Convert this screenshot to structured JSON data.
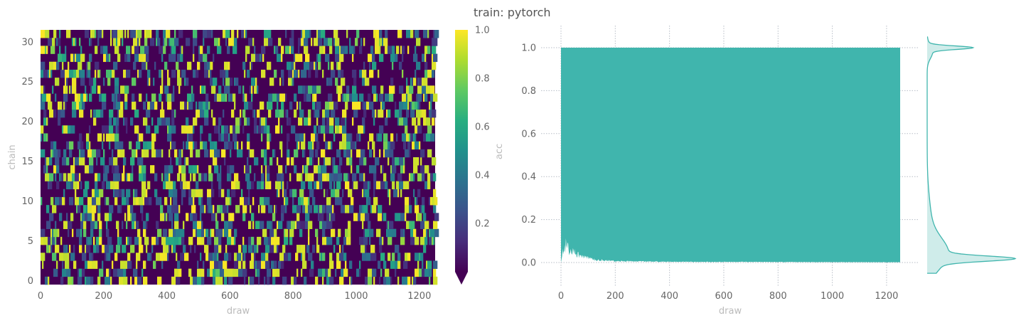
{
  "title": "train: pytorch",
  "colors": {
    "trace": "#40b5ad",
    "grid": "#b7bdc6",
    "viridis_low": "#440154",
    "viridis_high": "#fde725"
  },
  "chart_data": [
    {
      "type": "heatmap",
      "xlabel": "draw",
      "ylabel": "chain",
      "xlim": [
        0,
        1250
      ],
      "ylim": [
        0,
        31
      ],
      "xticks": [
        0,
        200,
        400,
        600,
        800,
        1000,
        1200
      ],
      "yticks": [
        0,
        5,
        10,
        15,
        20,
        25,
        30
      ],
      "n_chains": 32,
      "n_draws": 1250,
      "colormap": "viridis",
      "colorbar": {
        "label": "acc",
        "range": [
          0.0,
          1.0
        ],
        "ticks": [
          0.2,
          0.4,
          0.6,
          0.8,
          1.0
        ],
        "extend": "min"
      }
    },
    {
      "type": "area",
      "xlabel": "draw",
      "ylabel": "",
      "xlim": [
        0,
        1250
      ],
      "ylim": [
        -0.1,
        1.1
      ],
      "xticks": [
        0,
        200,
        400,
        600,
        800,
        1000,
        1200
      ],
      "yticks": [
        0.0,
        0.2,
        0.4,
        0.6,
        0.8,
        1.0
      ],
      "grid": true,
      "series": [
        {
          "upper": 1.0,
          "lower_profile": [
            [
              0,
              0.0
            ],
            [
              5,
              0.08
            ],
            [
              15,
              0.12
            ],
            [
              30,
              0.09
            ],
            [
              50,
              0.07
            ],
            [
              80,
              0.04
            ],
            [
              120,
              0.02
            ],
            [
              200,
              0.01
            ],
            [
              400,
              0.005
            ],
            [
              1250,
              0.002
            ]
          ]
        }
      ]
    },
    {
      "type": "area",
      "description_kind": "density",
      "orientation": "vertical",
      "value_range": [
        -0.05,
        1.05
      ],
      "density_peaks": [
        0.0,
        1.0
      ]
    }
  ]
}
